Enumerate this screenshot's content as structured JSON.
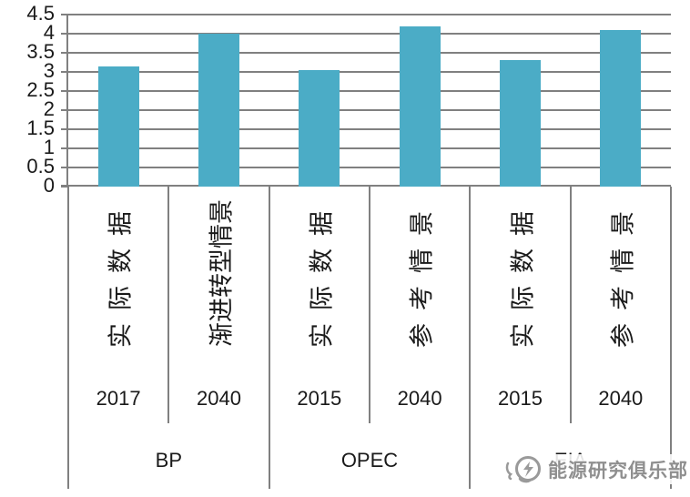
{
  "chart_data": {
    "type": "bar",
    "title": "",
    "xlabel": "",
    "ylabel": "",
    "ylim": [
      0,
      4.5
    ],
    "ytick_step": 0.5,
    "yticks": [
      "0",
      "0.5",
      "1",
      "1.5",
      "2",
      "2.5",
      "3",
      "3.5",
      "4",
      "4.5"
    ],
    "grid": true,
    "legend": false,
    "bar_color": "#4BACC6",
    "groups": [
      {
        "name": "BP",
        "bars": [
          {
            "scenario": "实际数据",
            "year": "2017",
            "value": 3.15
          },
          {
            "scenario": "渐进转型情景",
            "year": "2040",
            "value": 4.0
          }
        ]
      },
      {
        "name": "OPEC",
        "bars": [
          {
            "scenario": "实际数据",
            "year": "2015",
            "value": 3.05
          },
          {
            "scenario": "参考情景",
            "year": "2040",
            "value": 4.2
          }
        ]
      },
      {
        "name": "EIA",
        "bars": [
          {
            "scenario": "实际数据",
            "year": "2015",
            "value": 3.3
          },
          {
            "scenario": "参考情景",
            "year": "2040",
            "value": 4.1
          }
        ]
      }
    ]
  },
  "watermark": {
    "text": "能源研究俱乐部",
    "logo": "energy-club-logo",
    "color": "#8f8f8f"
  },
  "colors": {
    "bar": "#4BACC6",
    "grid": "#808080",
    "text": "#1a1a1a"
  }
}
